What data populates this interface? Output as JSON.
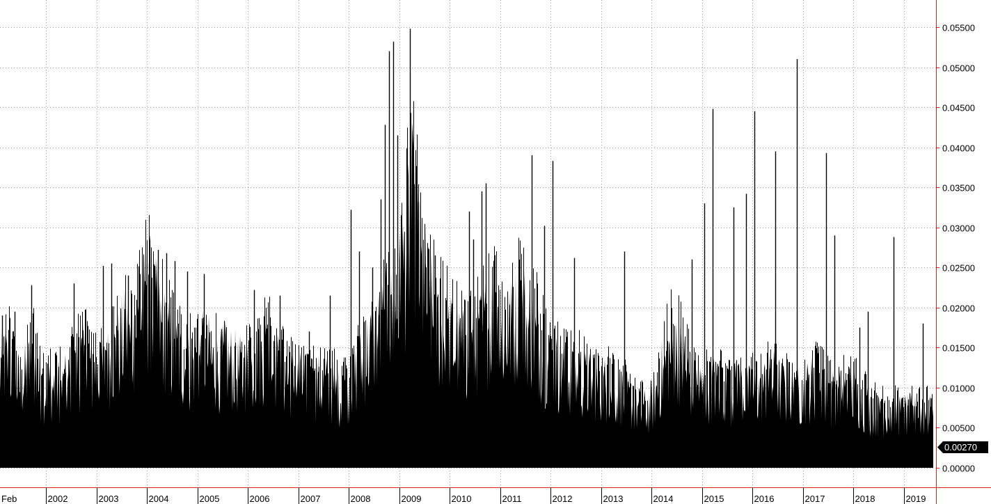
{
  "chart_data": {
    "type": "bar",
    "title": "",
    "xlabel": "",
    "ylabel": "",
    "ylim": [
      0,
      0.058
    ],
    "grid": true,
    "y_ticks": [
      "0.00000",
      "0.00500",
      "0.01000",
      "0.01500",
      "0.02000",
      "0.02500",
      "0.03000",
      "0.03500",
      "0.04000",
      "0.04500",
      "0.05000",
      "0.05500"
    ],
    "x_ticks": [
      "Feb",
      "2002",
      "2003",
      "2004",
      "2005",
      "2006",
      "2007",
      "2008",
      "2009",
      "2010",
      "2011",
      "2012",
      "2013",
      "2014",
      "2015",
      "2016",
      "2017",
      "2018",
      "2019"
    ],
    "x_range": [
      "2001-02",
      "2019-08"
    ],
    "last_value": "0.00270",
    "colors": {
      "bars": "#000000",
      "grid": "#9a9a9a",
      "axis": "#e02020",
      "marker_bg": "#000000",
      "marker_text": "#ffffff"
    },
    "baseline_monthly": {
      "start": "2001-02",
      "values": [
        0.0112,
        0.0125,
        0.0128,
        0.0115,
        0.0105,
        0.01,
        0.011,
        0.012,
        0.0125,
        0.0105,
        0.0098,
        0.0095,
        0.0098,
        0.0102,
        0.0098,
        0.0095,
        0.01,
        0.011,
        0.0118,
        0.0125,
        0.0128,
        0.0118,
        0.0108,
        0.011,
        0.0112,
        0.012,
        0.0128,
        0.0135,
        0.014,
        0.015,
        0.016,
        0.015,
        0.016,
        0.0175,
        0.019,
        0.02,
        0.0205,
        0.0185,
        0.017,
        0.016,
        0.015,
        0.014,
        0.0135,
        0.013,
        0.0125,
        0.012,
        0.0125,
        0.013,
        0.0135,
        0.014,
        0.013,
        0.0125,
        0.012,
        0.0125,
        0.013,
        0.0125,
        0.012,
        0.0115,
        0.0115,
        0.0115,
        0.012,
        0.0125,
        0.013,
        0.014,
        0.0135,
        0.0125,
        0.012,
        0.0115,
        0.011,
        0.0105,
        0.0105,
        0.0105,
        0.01,
        0.01,
        0.0098,
        0.0098,
        0.01,
        0.01,
        0.0098,
        0.0095,
        0.0092,
        0.009,
        0.0092,
        0.0095,
        0.0105,
        0.0115,
        0.0125,
        0.0135,
        0.0145,
        0.0155,
        0.016,
        0.017,
        0.0175,
        0.018,
        0.019,
        0.021,
        0.024,
        0.028,
        0.03,
        0.027,
        0.024,
        0.022,
        0.02,
        0.018,
        0.017,
        0.0165,
        0.016,
        0.0155,
        0.015,
        0.0145,
        0.014,
        0.0138,
        0.014,
        0.0145,
        0.0155,
        0.0165,
        0.0175,
        0.018,
        0.017,
        0.016,
        0.0155,
        0.016,
        0.017,
        0.018,
        0.0185,
        0.018,
        0.017,
        0.016,
        0.015,
        0.014,
        0.013,
        0.0125,
        0.012,
        0.0118,
        0.0115,
        0.0112,
        0.011,
        0.011,
        0.0108,
        0.0105,
        0.0102,
        0.01,
        0.01,
        0.01,
        0.0098,
        0.0095,
        0.0092,
        0.009,
        0.0088,
        0.0085,
        0.008,
        0.0075,
        0.007,
        0.0068,
        0.007,
        0.0078,
        0.009,
        0.0105,
        0.012,
        0.0135,
        0.0145,
        0.014,
        0.013,
        0.012,
        0.011,
        0.01,
        0.0098,
        0.0095,
        0.0095,
        0.0098,
        0.01,
        0.0095,
        0.0092,
        0.009,
        0.0092,
        0.0095,
        0.0098,
        0.0095,
        0.009,
        0.009,
        0.0092,
        0.0095,
        0.0098,
        0.01,
        0.0105,
        0.01,
        0.0095,
        0.009,
        0.0088,
        0.0088,
        0.009,
        0.0092,
        0.0095,
        0.0098,
        0.01,
        0.0098,
        0.0095,
        0.009,
        0.0085,
        0.0085,
        0.0088,
        0.009,
        0.0092,
        0.009,
        0.0085,
        0.008,
        0.0075,
        0.007,
        0.0068,
        0.0065
      ]
    },
    "spikes": [
      {
        "date": "2001-02",
        "value": 0.019
      },
      {
        "date": "2001-05",
        "value": 0.0195
      },
      {
        "date": "2001-09",
        "value": 0.0228
      },
      {
        "date": "2002-07",
        "value": 0.023
      },
      {
        "date": "2003-02",
        "value": 0.0252
      },
      {
        "date": "2003-04",
        "value": 0.0255
      },
      {
        "date": "2003-08",
        "value": 0.024
      },
      {
        "date": "2004-01",
        "value": 0.0255
      },
      {
        "date": "2004-03",
        "value": 0.0272
      },
      {
        "date": "2004-05",
        "value": 0.0268
      },
      {
        "date": "2004-07",
        "value": 0.0258
      },
      {
        "date": "2004-10",
        "value": 0.0245
      },
      {
        "date": "2005-02",
        "value": 0.0242
      },
      {
        "date": "2006-02",
        "value": 0.0222
      },
      {
        "date": "2006-08",
        "value": 0.0215
      },
      {
        "date": "2007-03",
        "value": 0.017
      },
      {
        "date": "2007-08",
        "value": 0.0215
      },
      {
        "date": "2008-01",
        "value": 0.0322
      },
      {
        "date": "2008-03",
        "value": 0.027
      },
      {
        "date": "2008-06",
        "value": 0.025
      },
      {
        "date": "2008-08",
        "value": 0.0335
      },
      {
        "date": "2008-09",
        "value": 0.0428
      },
      {
        "date": "2008-10",
        "value": 0.052
      },
      {
        "date": "2008-11",
        "value": 0.0532
      },
      {
        "date": "2008-12",
        "value": 0.0415
      },
      {
        "date": "2009-03",
        "value": 0.0548
      },
      {
        "date": "2009-05",
        "value": 0.0332
      },
      {
        "date": "2009-09",
        "value": 0.0265
      },
      {
        "date": "2010-05",
        "value": 0.032
      },
      {
        "date": "2010-06",
        "value": 0.0285
      },
      {
        "date": "2010-08",
        "value": 0.0345
      },
      {
        "date": "2010-09",
        "value": 0.0355
      },
      {
        "date": "2011-08",
        "value": 0.039
      },
      {
        "date": "2011-11",
        "value": 0.0302
      },
      {
        "date": "2012-01",
        "value": 0.0383
      },
      {
        "date": "2012-06",
        "value": 0.0262
      },
      {
        "date": "2013-06",
        "value": 0.027
      },
      {
        "date": "2014-10",
        "value": 0.026
      },
      {
        "date": "2015-01",
        "value": 0.033
      },
      {
        "date": "2015-03",
        "value": 0.0448
      },
      {
        "date": "2015-08",
        "value": 0.0325
      },
      {
        "date": "2015-11",
        "value": 0.0342
      },
      {
        "date": "2016-01",
        "value": 0.0445
      },
      {
        "date": "2016-06",
        "value": 0.0395
      },
      {
        "date": "2016-11",
        "value": 0.051
      },
      {
        "date": "2017-06",
        "value": 0.0393
      },
      {
        "date": "2017-08",
        "value": 0.029
      },
      {
        "date": "2018-02",
        "value": 0.0175
      },
      {
        "date": "2018-04",
        "value": 0.0195
      },
      {
        "date": "2018-10",
        "value": 0.0288
      },
      {
        "date": "2019-05",
        "value": 0.018
      }
    ]
  }
}
